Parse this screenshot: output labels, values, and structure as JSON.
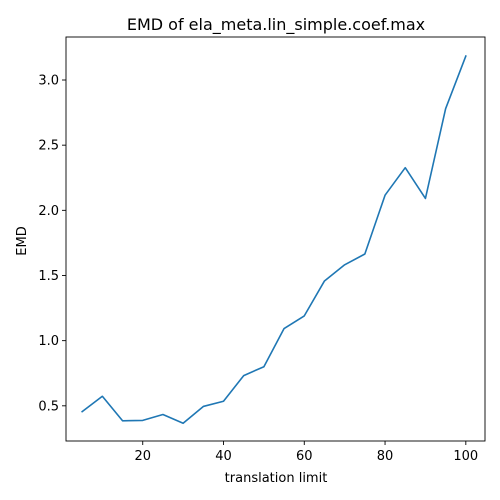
{
  "chart_data": {
    "type": "line",
    "title": "EMD of ela_meta.lin_simple.coef.max",
    "xlabel": "translation limit",
    "ylabel": "EMD",
    "xlim": [
      1,
      104.75
    ],
    "ylim": [
      0.23,
      3.33
    ],
    "x_ticks": [
      20,
      40,
      60,
      80,
      100
    ],
    "y_ticks": [
      0.5,
      1.0,
      1.5,
      2.0,
      2.5,
      3.0
    ],
    "x_tick_labels": [
      "20",
      "40",
      "60",
      "80",
      "100"
    ],
    "y_tick_labels": [
      "0.5",
      "1.0",
      "1.5",
      "2.0",
      "2.5",
      "3.0"
    ],
    "grid": false,
    "color": "#1f77b4",
    "series": [
      {
        "x": [
          5,
          10,
          15,
          20,
          25,
          30,
          35,
          40,
          45,
          50,
          55,
          60,
          65,
          70,
          75,
          80,
          85,
          90,
          95,
          100
        ],
        "values": [
          0.455,
          0.573,
          0.385,
          0.388,
          0.433,
          0.366,
          0.495,
          0.535,
          0.732,
          0.8,
          1.093,
          1.19,
          1.458,
          1.582,
          1.665,
          2.116,
          2.327,
          2.091,
          2.78,
          3.184
        ]
      }
    ]
  }
}
